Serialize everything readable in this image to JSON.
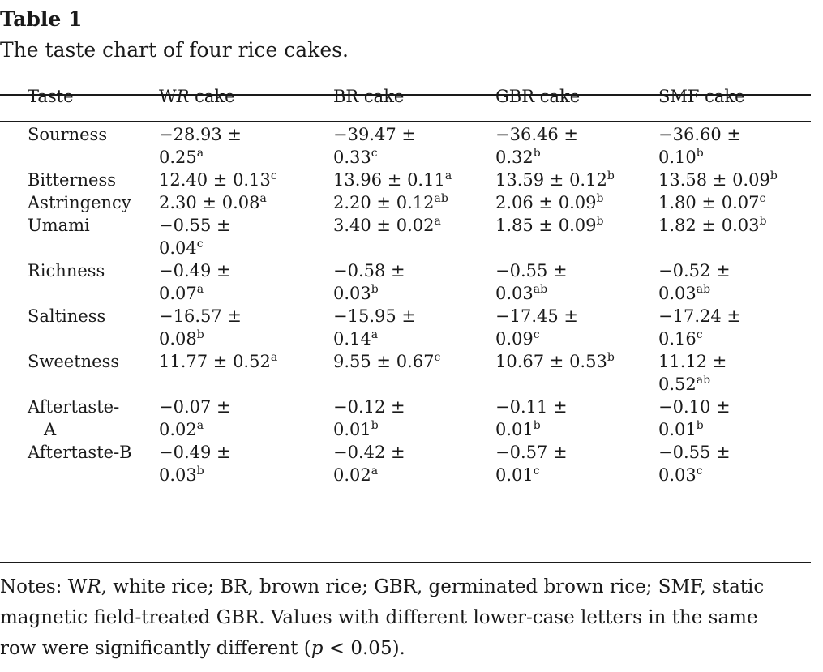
{
  "table": {
    "label": "Table 1",
    "caption": "The taste chart of four rice cakes.",
    "headers": [
      {
        "pre": "Taste",
        "it": "",
        "post": ""
      },
      {
        "pre": "W",
        "it": "R",
        "post": " cake"
      },
      {
        "pre": "BR cake",
        "it": "",
        "post": ""
      },
      {
        "pre": "GBR cake",
        "it": "",
        "post": ""
      },
      {
        "pre": "SMF cake",
        "it": "",
        "post": ""
      }
    ],
    "rows": [
      {
        "taste": {
          "l1": "Sourness",
          "l2": ""
        },
        "cells": [
          {
            "l1": "−28.93 ±",
            "l2": "0.25",
            "sup": "a"
          },
          {
            "l1": "−39.47 ±",
            "l2": "0.33",
            "sup": "c"
          },
          {
            "l1": "−36.46 ±",
            "l2": "0.32",
            "sup": "b"
          },
          {
            "l1": "−36.60 ±",
            "l2": "0.10",
            "sup": "b"
          }
        ]
      },
      {
        "taste": {
          "l1": "Bitterness",
          "l2": ""
        },
        "cells": [
          {
            "l1": "12.40 ± 0.13",
            "l2": "",
            "sup": "c"
          },
          {
            "l1": "13.96 ± 0.11",
            "l2": "",
            "sup": "a"
          },
          {
            "l1": "13.59 ± 0.12",
            "l2": "",
            "sup": "b"
          },
          {
            "l1": "13.58 ± 0.09",
            "l2": "",
            "sup": "b"
          }
        ]
      },
      {
        "taste": {
          "l1": "Astringency",
          "l2": ""
        },
        "cells": [
          {
            "l1": "2.30 ± 0.08",
            "l2": "",
            "sup": "a"
          },
          {
            "l1": "2.20 ± 0.12",
            "l2": "",
            "sup": "ab"
          },
          {
            "l1": "2.06 ± 0.09",
            "l2": "",
            "sup": "b"
          },
          {
            "l1": "1.80 ± 0.07",
            "l2": "",
            "sup": "c"
          }
        ]
      },
      {
        "taste": {
          "l1": "Umami",
          "l2": ""
        },
        "cells": [
          {
            "l1": "−0.55 ±",
            "l2": "0.04",
            "sup": "c"
          },
          {
            "l1": "3.40 ± 0.02",
            "l2": "",
            "sup": "a"
          },
          {
            "l1": "1.85 ± 0.09",
            "l2": "",
            "sup": "b"
          },
          {
            "l1": "1.82 ± 0.03",
            "l2": "",
            "sup": "b"
          }
        ]
      },
      {
        "taste": {
          "l1": "Richness",
          "l2": ""
        },
        "cells": [
          {
            "l1": "−0.49 ±",
            "l2": "0.07",
            "sup": "a"
          },
          {
            "l1": "−0.58 ±",
            "l2": "0.03",
            "sup": "b"
          },
          {
            "l1": "−0.55 ±",
            "l2": "0.03",
            "sup": "ab"
          },
          {
            "l1": "−0.52 ±",
            "l2": "0.03",
            "sup": "ab"
          }
        ]
      },
      {
        "taste": {
          "l1": "Saltiness",
          "l2": ""
        },
        "cells": [
          {
            "l1": "−16.57 ±",
            "l2": "0.08",
            "sup": "b"
          },
          {
            "l1": "−15.95 ±",
            "l2": "0.14",
            "sup": "a"
          },
          {
            "l1": "−17.45 ±",
            "l2": "0.09",
            "sup": "c"
          },
          {
            "l1": "−17.24 ±",
            "l2": "0.16",
            "sup": "c"
          }
        ]
      },
      {
        "taste": {
          "l1": "Sweetness",
          "l2": ""
        },
        "cells": [
          {
            "l1": "11.77 ± 0.52",
            "l2": "",
            "sup": "a"
          },
          {
            "l1": "9.55 ± 0.67",
            "l2": "",
            "sup": "c"
          },
          {
            "l1": "10.67 ± 0.53",
            "l2": "",
            "sup": "b"
          },
          {
            "l1": "11.12 ±",
            "l2": "0.52",
            "sup": "ab"
          }
        ]
      },
      {
        "taste": {
          "l1": "Aftertaste-",
          "l2": "A"
        },
        "cells": [
          {
            "l1": "−0.07 ±",
            "l2": "0.02",
            "sup": "a"
          },
          {
            "l1": "−0.12 ±",
            "l2": "0.01",
            "sup": "b"
          },
          {
            "l1": "−0.11 ±",
            "l2": "0.01",
            "sup": "b"
          },
          {
            "l1": "−0.10 ±",
            "l2": "0.01",
            "sup": "b"
          }
        ]
      },
      {
        "taste": {
          "l1": "Aftertaste-B",
          "l2": ""
        },
        "cells": [
          {
            "l1": "−0.49 ±",
            "l2": "0.03",
            "sup": "b"
          },
          {
            "l1": "−0.42 ±",
            "l2": "0.02",
            "sup": "a"
          },
          {
            "l1": "−0.57 ±",
            "l2": "0.01",
            "sup": "c"
          },
          {
            "l1": "−0.55 ±",
            "l2": "0.03",
            "sup": "c"
          }
        ]
      }
    ]
  },
  "notes": {
    "line1_a": "Notes: W",
    "line1_it": "R",
    "line1_b": ", white rice; BR, brown rice; GBR, germinated brown rice; SMF, static",
    "line2": "magnetic field-treated GBR. Values with different lower-case letters in the same",
    "line3_a": "row were significantly different (",
    "line3_it": "p",
    "line3_b": " < 0.05)."
  }
}
